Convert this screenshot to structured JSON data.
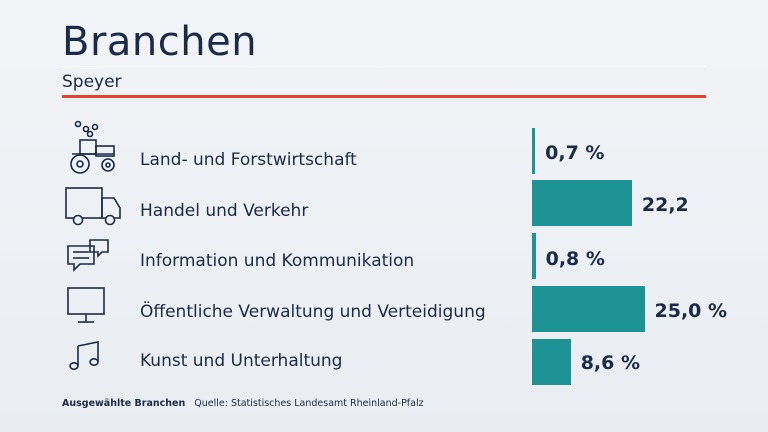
{
  "title": "Branchen",
  "subtitle": "Speyer",
  "footer": {
    "note": "Ausgewählte Branchen",
    "source": "Quelle: Statistisches Landesamt Rheinland-Pfalz"
  },
  "colors": {
    "bar": "#1d9396",
    "accent_rule": "#e1432f",
    "text": "#1a2a49"
  },
  "chart_data": {
    "type": "bar",
    "orientation": "horizontal",
    "categories": [
      "Land- und Forstwirtschaft",
      "Handel und Verkehr",
      "Information und Kommunikation",
      "Öffentliche Verwaltung und Verteidigung",
      "Kunst und Unterhaltung"
    ],
    "values": [
      0.7,
      22.2,
      0.8,
      25.0,
      8.6
    ],
    "value_labels": [
      "0,7 %",
      "22,2",
      "0,8 %",
      "25,0 %",
      "8,6 %"
    ],
    "icons": [
      "tractor-icon",
      "truck-icon",
      "speech-bubbles-icon",
      "monitor-icon",
      "music-note-icon"
    ],
    "unit": "%"
  }
}
